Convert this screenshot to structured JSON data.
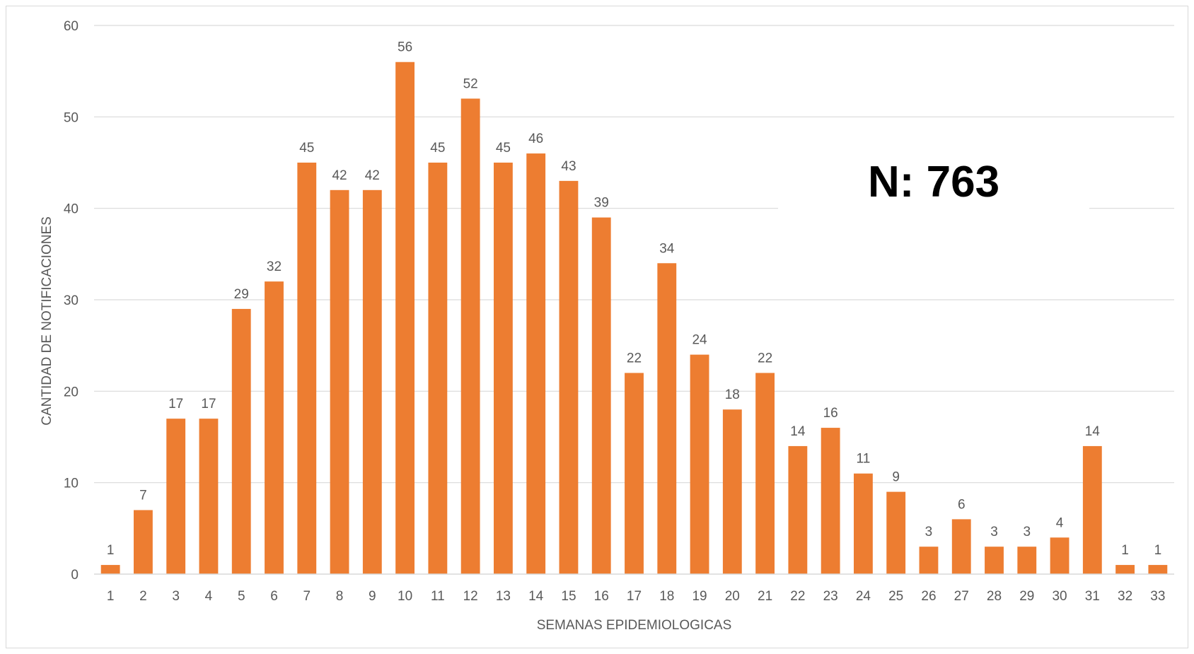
{
  "chart_data": {
    "type": "bar",
    "title": "",
    "xlabel": "SEMANAS EPIDEMIOLOGICAS",
    "ylabel": "CANTIDAD DE NOTIFICACIONES",
    "ylim": [
      0,
      60
    ],
    "yticks": [
      0,
      10,
      20,
      30,
      40,
      50,
      60
    ],
    "grid": true,
    "legend": "none",
    "bar_color": "#ED7D31",
    "categories": [
      "1",
      "2",
      "3",
      "4",
      "5",
      "6",
      "7",
      "8",
      "9",
      "10",
      "11",
      "12",
      "13",
      "14",
      "15",
      "16",
      "17",
      "18",
      "19",
      "20",
      "21",
      "22",
      "23",
      "24",
      "25",
      "26",
      "27",
      "28",
      "29",
      "30",
      "31",
      "32",
      "33"
    ],
    "values": [
      1,
      7,
      17,
      17,
      29,
      32,
      45,
      42,
      42,
      56,
      45,
      52,
      45,
      46,
      43,
      39,
      22,
      34,
      24,
      18,
      22,
      14,
      16,
      11,
      9,
      3,
      6,
      3,
      3,
      4,
      14,
      1,
      1
    ],
    "annotation": "N: 763"
  }
}
